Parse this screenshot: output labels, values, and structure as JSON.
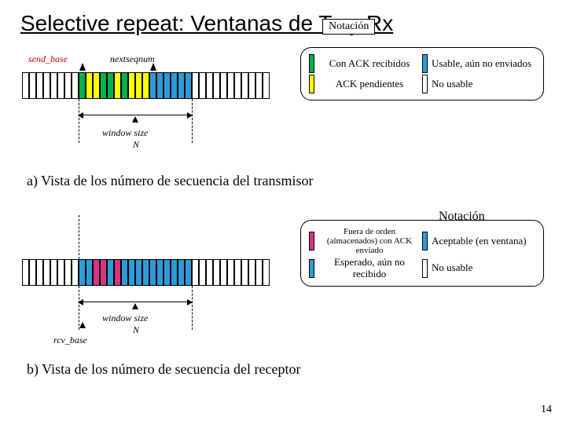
{
  "title": "Selective repeat: Ventanas de Tx y Rx",
  "notacion_label": "Notación",
  "caption_a": "a) Vista de los número de secuencia del transmisor",
  "caption_b": "b) Vista de los número de secuencia del receptor",
  "pagenum": "14",
  "tx": {
    "send_base": "send_base",
    "nextseqnum": "nextseqnum",
    "window_size": "window size",
    "N": "N",
    "segments": [
      {
        "c": "#ffffff"
      },
      {
        "c": "#ffffff"
      },
      {
        "c": "#ffffff"
      },
      {
        "c": "#ffffff"
      },
      {
        "c": "#ffffff"
      },
      {
        "c": "#ffffff"
      },
      {
        "c": "#ffffff"
      },
      {
        "c": "#ffffff"
      },
      {
        "c": "#00b050"
      },
      {
        "c": "#ffff00"
      },
      {
        "c": "#ffff00"
      },
      {
        "c": "#00b050"
      },
      {
        "c": "#00b050"
      },
      {
        "c": "#ffff00"
      },
      {
        "c": "#00b050"
      },
      {
        "c": "#ffff00"
      },
      {
        "c": "#ffff00"
      },
      {
        "c": "#ffff00"
      },
      {
        "c": "#2e9bd6"
      },
      {
        "c": "#2e9bd6"
      },
      {
        "c": "#2e9bd6"
      },
      {
        "c": "#2e9bd6"
      },
      {
        "c": "#2e9bd6"
      },
      {
        "c": "#2e9bd6"
      },
      {
        "c": "#ffffff"
      },
      {
        "c": "#ffffff"
      },
      {
        "c": "#ffffff"
      },
      {
        "c": "#ffffff"
      },
      {
        "c": "#ffffff"
      },
      {
        "c": "#ffffff"
      },
      {
        "c": "#ffffff"
      },
      {
        "c": "#ffffff"
      },
      {
        "c": "#ffffff"
      },
      {
        "c": "#ffffff"
      },
      {
        "c": "#ffffff"
      }
    ],
    "window_start_index": 8,
    "window_end_index": 23,
    "nextseqnum_index": 18,
    "legend": {
      "ack_recv": "Con ACK recibidos",
      "usable": "Usable, aún no enviados",
      "ack_pend": "ACK pendientes",
      "not_usable": "No usable",
      "colors": {
        "ack_recv": "#00b050",
        "usable": "#2e9bd6",
        "ack_pend": "#ffff00",
        "not_usable": "#ffffff"
      }
    }
  },
  "rx": {
    "rcv_base": "rcv_base",
    "window_size": "window size",
    "N": "N",
    "segments": [
      {
        "c": "#ffffff"
      },
      {
        "c": "#ffffff"
      },
      {
        "c": "#ffffff"
      },
      {
        "c": "#ffffff"
      },
      {
        "c": "#ffffff"
      },
      {
        "c": "#ffffff"
      },
      {
        "c": "#ffffff"
      },
      {
        "c": "#ffffff"
      },
      {
        "c": "#2e9bd6"
      },
      {
        "c": "#2e9bd6"
      },
      {
        "c": "#d63384"
      },
      {
        "c": "#d63384"
      },
      {
        "c": "#2e9bd6"
      },
      {
        "c": "#d63384"
      },
      {
        "c": "#2e9bd6"
      },
      {
        "c": "#2e9bd6"
      },
      {
        "c": "#2e9bd6"
      },
      {
        "c": "#2e9bd6"
      },
      {
        "c": "#2e9bd6"
      },
      {
        "c": "#2e9bd6"
      },
      {
        "c": "#2e9bd6"
      },
      {
        "c": "#2e9bd6"
      },
      {
        "c": "#2e9bd6"
      },
      {
        "c": "#2e9bd6"
      },
      {
        "c": "#ffffff"
      },
      {
        "c": "#ffffff"
      },
      {
        "c": "#ffffff"
      },
      {
        "c": "#ffffff"
      },
      {
        "c": "#ffffff"
      },
      {
        "c": "#ffffff"
      },
      {
        "c": "#ffffff"
      },
      {
        "c": "#ffffff"
      },
      {
        "c": "#ffffff"
      },
      {
        "c": "#ffffff"
      },
      {
        "c": "#ffffff"
      }
    ],
    "window_start_index": 8,
    "window_end_index": 23,
    "legend": {
      "out_of_order": "Fuera de orden (almacenados) con ACK enviado",
      "acceptable": "Aceptable (en ventana)",
      "expected": "Esperado, aún no recibido",
      "not_usable": "No usable",
      "colors": {
        "out_of_order": "#d63384",
        "acceptable": "#2e9bd6",
        "expected": "#2e9bd6",
        "not_usable": "#ffffff"
      }
    }
  }
}
